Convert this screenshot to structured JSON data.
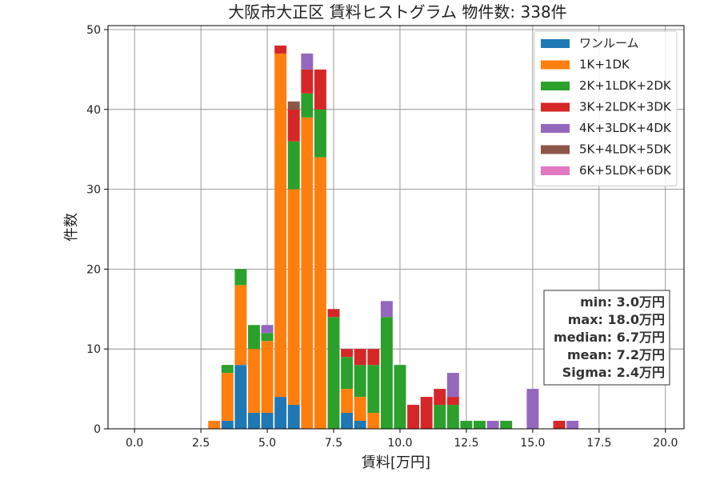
{
  "chart_data": {
    "type": "bar",
    "stacked": true,
    "title": "大阪市大正区 賃料ヒストグラム 物件数: 338件",
    "xlabel": "賃料[万円]",
    "ylabel": "件数",
    "xlim": [
      -1.0,
      20.7
    ],
    "ylim": [
      0,
      50.5
    ],
    "xticks": [
      0.0,
      2.5,
      5.0,
      7.5,
      10.0,
      12.5,
      15.0,
      17.5,
      20.0
    ],
    "xtick_labels": [
      "0.0",
      "2.5",
      "5.0",
      "7.5",
      "10.0",
      "12.5",
      "15.0",
      "17.5",
      "20.0"
    ],
    "yticks": [
      0,
      10,
      20,
      30,
      40,
      50
    ],
    "ytick_labels": [
      "0",
      "10",
      "20",
      "30",
      "40",
      "50"
    ],
    "grid": true,
    "legend_position": "top-right",
    "bin_width": 0.5,
    "x": [
      3.0,
      3.5,
      4.0,
      4.5,
      5.0,
      5.5,
      6.0,
      6.5,
      7.0,
      7.5,
      8.0,
      8.5,
      9.0,
      9.5,
      10.0,
      10.5,
      11.0,
      11.5,
      12.0,
      12.5,
      13.0,
      13.5,
      14.0,
      14.5,
      15.0,
      15.5,
      16.0,
      16.5
    ],
    "series": [
      {
        "name": "ワンルーム",
        "color": "#1f77b4",
        "values": [
          0,
          1,
          8,
          2,
          2,
          4,
          3,
          0,
          0,
          0,
          2,
          1,
          0,
          0,
          0,
          0,
          0,
          0,
          0,
          0,
          0,
          0,
          0,
          0,
          0,
          0,
          0,
          0
        ]
      },
      {
        "name": "1K+1DK",
        "color": "#ff7f0e",
        "values": [
          1,
          6,
          10,
          8,
          9,
          43,
          27,
          39,
          34,
          0,
          3,
          3,
          2,
          0,
          0,
          0,
          0,
          0,
          0,
          0,
          0,
          0,
          0,
          0,
          0,
          0,
          0,
          0
        ]
      },
      {
        "name": "2K+1LDK+2DK",
        "color": "#2ca02c",
        "values": [
          0,
          1,
          2,
          3,
          1,
          0,
          6,
          3,
          6,
          14,
          4,
          4,
          6,
          14,
          8,
          0,
          0,
          3,
          3,
          1,
          1,
          0,
          1,
          0,
          0,
          0,
          0,
          0
        ]
      },
      {
        "name": "3K+2LDK+3DK",
        "color": "#d62728",
        "values": [
          0,
          0,
          0,
          0,
          0,
          1,
          4,
          3,
          5,
          1,
          1,
          2,
          2,
          0,
          0,
          3,
          4,
          2,
          1,
          0,
          0,
          0,
          0,
          0,
          0,
          0,
          1,
          0
        ]
      },
      {
        "name": "4K+3LDK+4DK",
        "color": "#9467bd",
        "values": [
          0,
          0,
          0,
          0,
          1,
          0,
          0,
          2,
          0,
          0,
          0,
          0,
          0,
          2,
          0,
          0,
          0,
          0,
          3,
          0,
          0,
          1,
          0,
          0,
          5,
          0,
          0,
          1
        ]
      },
      {
        "name": "5K+4LDK+5DK",
        "color": "#8c564b",
        "values": [
          0,
          0,
          0,
          0,
          0,
          0,
          1,
          0,
          0,
          0,
          0,
          0,
          0,
          0,
          0,
          0,
          0,
          0,
          0,
          0,
          0,
          0,
          0,
          0,
          0,
          0,
          0,
          0
        ]
      },
      {
        "name": "6K+5LDK+6DK",
        "color": "#e377c2",
        "values": [
          0,
          0,
          0,
          0,
          0,
          0,
          0,
          0,
          0,
          0,
          0,
          0,
          0,
          0,
          0,
          0,
          0,
          0,
          0,
          0,
          0,
          0,
          0,
          0,
          0,
          0,
          0,
          0
        ]
      }
    ],
    "stats_box": [
      "min: 3.0万円",
      "max: 18.0万円",
      "median: 6.7万円",
      "mean: 7.2万円",
      "Sigma: 2.4万円"
    ]
  }
}
